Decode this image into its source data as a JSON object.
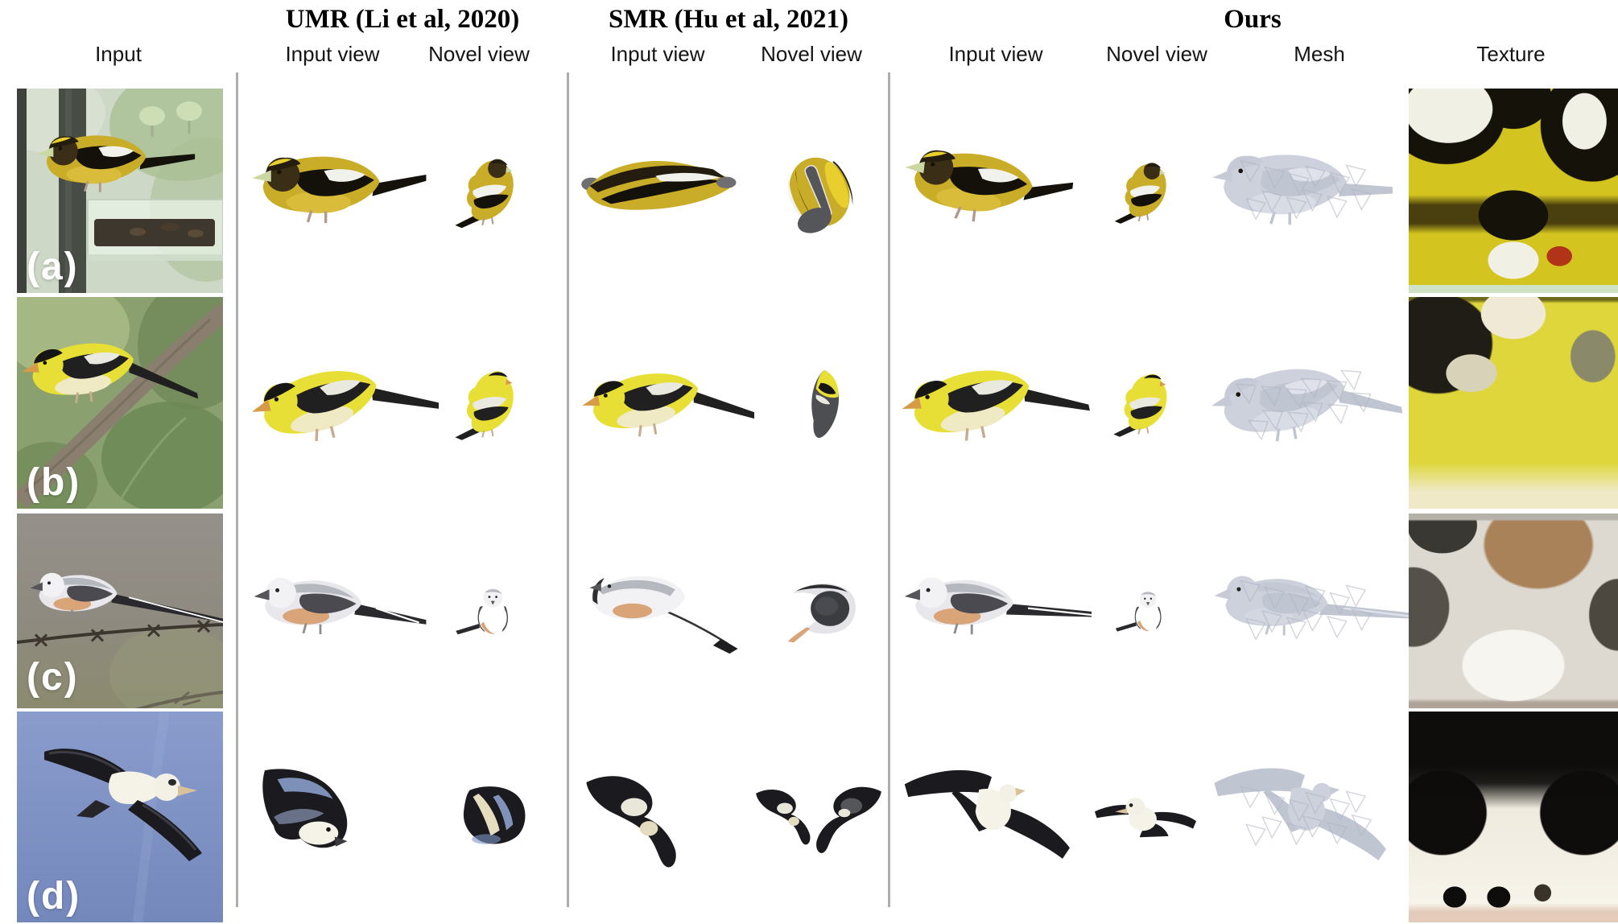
{
  "figure": {
    "kind": "qualitative-comparison-figure",
    "methods": [
      {
        "name": "UMR (Li et al, 2020)"
      },
      {
        "name": "SMR (Hu et al, 2021)"
      },
      {
        "name": "Ours"
      }
    ],
    "column_labels": [
      "Input",
      "Input view",
      "Novel view",
      "Input view",
      "Novel view",
      "Input view",
      "Novel view",
      "Mesh",
      "Texture"
    ],
    "divider_color": "#adadad",
    "palettes": {
      "grosbeak": {
        "body": "#c9ad28",
        "belly": "#d9bc3a",
        "cap": "#241c0e",
        "brow": "#e8cf2e",
        "wing": "#14110a",
        "patch": "#f2f2ec",
        "beak": "#ccd8a2",
        "head": "#3a2e16",
        "leg": "#b09a8a"
      },
      "goldfinch": {
        "body": "#e7df36",
        "belly": "#efe9c4",
        "cap": "#161614",
        "wing": "#202020",
        "patch": "#eae9df",
        "beak": "#d79a46",
        "head": "#e7df36",
        "leg": "#c6ab8e"
      },
      "flycatcher": {
        "body": "#e8e8ec",
        "belly": "#f2f2f4",
        "wing": "#4a4a50",
        "patch": "#ffffff",
        "beak": "#55555a",
        "head": "#f2f2f5",
        "back": "#b6b8c0",
        "flank": "#d9a477",
        "tail": "#2a2a2e",
        "leg": "#8b8b90"
      },
      "albatross": {
        "body": "#f5f2e8",
        "belly": "#f5f2e8",
        "wing": "#1a1a1f",
        "patch": "#e9e7da",
        "beak": "#d9c19c",
        "head": "#f3f0e6",
        "leg": "#666666"
      },
      "mesh": {
        "body": "#cdd1dc",
        "belly": "#d8dce5",
        "cap": "#c6cad6",
        "wing": "#c0c5d2",
        "patch": "#dfe2ea",
        "beak": "#c6cad6",
        "head": "#cdd1dc",
        "back": "#c4c8d4",
        "flank": "#d3d7e0",
        "tail": "#c0c5d2",
        "leg": "#c0c5d2",
        "facet": "#aeb3c2"
      }
    },
    "textures": {
      "a": {
        "base": "#d3c41f",
        "dark": "#15120a",
        "light": "#f1f0e4",
        "accent": "#b23418",
        "strip": "#cfe2c6"
      },
      "b": {
        "base": "#ded63a",
        "dark": "#201d16",
        "light": "#efe9d6",
        "accent": "#8a8a6a",
        "strip": "#efe9c8"
      },
      "c": {
        "base": "#ddd9d1",
        "dark": "#3a3832",
        "light": "#f6f5f0",
        "accent": "#a9825a",
        "strip": "#b5b2aa"
      },
      "d": {
        "base": "#efeade",
        "dark": "#0e0d0b",
        "light": "#f8f5ec",
        "accent": "#b06038",
        "strip": "#3a332a"
      }
    },
    "rows": [
      {
        "label": "(a)",
        "subject": "yellow-and-black grosbeak at a window feeder",
        "photo": {
          "scene": "window-feeder",
          "sky": "#cdd8c6",
          "foliage": "#a9bf93",
          "frame": "#474c45",
          "glass": "#e9f2e6",
          "seeds": "#2c231b"
        },
        "cells": {
          "umr_input_view": {
            "pose": "side",
            "palette": "grosbeak",
            "tail": 58,
            "dip": -10
          },
          "umr_novel_view": {
            "pose": "back",
            "palette": "grosbeak"
          },
          "smr_input_view": {
            "pose": "blob",
            "palette": "grosbeak"
          },
          "smr_novel_view": {
            "pose": "egg",
            "palette": "grosbeak"
          },
          "ours_input_view": {
            "pose": "side",
            "palette": "grosbeak",
            "rot": 7,
            "tail": 50,
            "dip": -12
          },
          "ours_novel_view": {
            "pose": "back",
            "palette": "grosbeak",
            "scale": 0.92
          },
          "mesh": {
            "pose": "side",
            "palette": "mesh",
            "facets": true,
            "tail": 55,
            "dip": 4
          },
          "texture": {
            "map": "a"
          }
        }
      },
      {
        "label": "(b)",
        "subject": "yellow goldfinch perched on a branch",
        "photo": {
          "scene": "branch-foliage",
          "sky": "#8aa06e",
          "foliage": "#5f7a4a",
          "leaf": "#6d8a55",
          "branch": "#8a7f6e",
          "glass": "#b8c790",
          "seeds": "#3a4a30"
        },
        "cells": {
          "umr_input_view": {
            "pose": "side",
            "palette": "goldfinch",
            "rot": -14,
            "tail": 72,
            "dip": 36
          },
          "umr_novel_view": {
            "pose": "back",
            "palette": "goldfinch"
          },
          "smr_input_view": {
            "pose": "side",
            "palette": "goldfinch",
            "rot": -10,
            "tail": 82,
            "dip": 46
          },
          "smr_novel_view": {
            "pose": "flat",
            "palette": "goldfinch"
          },
          "ours_input_view": {
            "pose": "side",
            "palette": "goldfinch",
            "rot": -12,
            "tail": 66,
            "dip": 32
          },
          "ours_novel_view": {
            "pose": "back",
            "palette": "goldfinch",
            "scale": 0.95
          },
          "mesh": {
            "pose": "side",
            "palette": "mesh",
            "facets": true,
            "rot": -10,
            "tail": 62,
            "dip": 30
          },
          "texture": {
            "map": "b"
          }
        }
      },
      {
        "label": "(c)",
        "subject": "pale scissor-tailed flycatcher on barbed wire",
        "photo": {
          "scene": "barbed-wire",
          "sky": "#95908a",
          "foliage": "#8b8a6e",
          "wire": "#3c362e",
          "glass": "#96997a",
          "branch": "#6a6456"
        },
        "cells": {
          "umr_input_view": {
            "pose": "longtail",
            "palette": "flycatcher",
            "tail": 78,
            "dip": 18
          },
          "umr_novel_view": {
            "pose": "front",
            "palette": "flycatcher",
            "scale": 0.9
          },
          "smr_input_view": {
            "pose": "smrlong",
            "palette": "flycatcher"
          },
          "smr_novel_view": {
            "pose": "shell",
            "palette": "flycatcher"
          },
          "ours_input_view": {
            "pose": "longtail",
            "palette": "flycatcher",
            "tail": 105,
            "dip": 10
          },
          "ours_novel_view": {
            "pose": "front",
            "palette": "flycatcher",
            "scale": 0.82
          },
          "mesh": {
            "pose": "longtail",
            "palette": "mesh",
            "facets": true,
            "tail": 112,
            "dip": 12
          },
          "texture": {
            "map": "c"
          }
        }
      },
      {
        "label": "(d)",
        "subject": "albatross gliding with spread dark wings",
        "photo": {
          "scene": "blue-sky",
          "sky": "#8a9ccc",
          "sky2": "#7488bc",
          "glass": "#9dafd8"
        },
        "cells": {
          "umr_input_view": {
            "pose": "diving",
            "palette": "albatross"
          },
          "umr_novel_view": {
            "pose": "round",
            "palette": "albatross"
          },
          "smr_input_view": {
            "pose": "wingcurve",
            "palette": "albatross"
          },
          "smr_novel_view": {
            "pose": "wingcurve2",
            "palette": "albatross"
          },
          "ours_input_view": {
            "pose": "flyaway",
            "palette": "albatross"
          },
          "ours_novel_view": {
            "pose": "flytoward",
            "palette": "albatross"
          },
          "mesh": {
            "pose": "flyaway",
            "palette": "mesh",
            "facets": true
          },
          "texture": {
            "map": "d"
          }
        }
      }
    ]
  }
}
